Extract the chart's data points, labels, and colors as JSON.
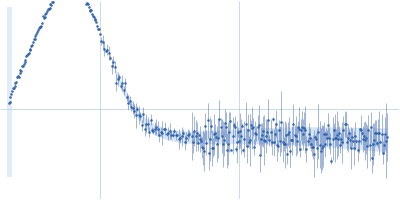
{
  "background_color": "#ffffff",
  "data_color": "#2a5faa",
  "fit_color": "#b8d0ea",
  "error_color": "#4a70b8",
  "axis_color": "#9bbcd8",
  "figsize": [
    4.0,
    2.0
  ],
  "dpi": 100,
  "seed": 17
}
